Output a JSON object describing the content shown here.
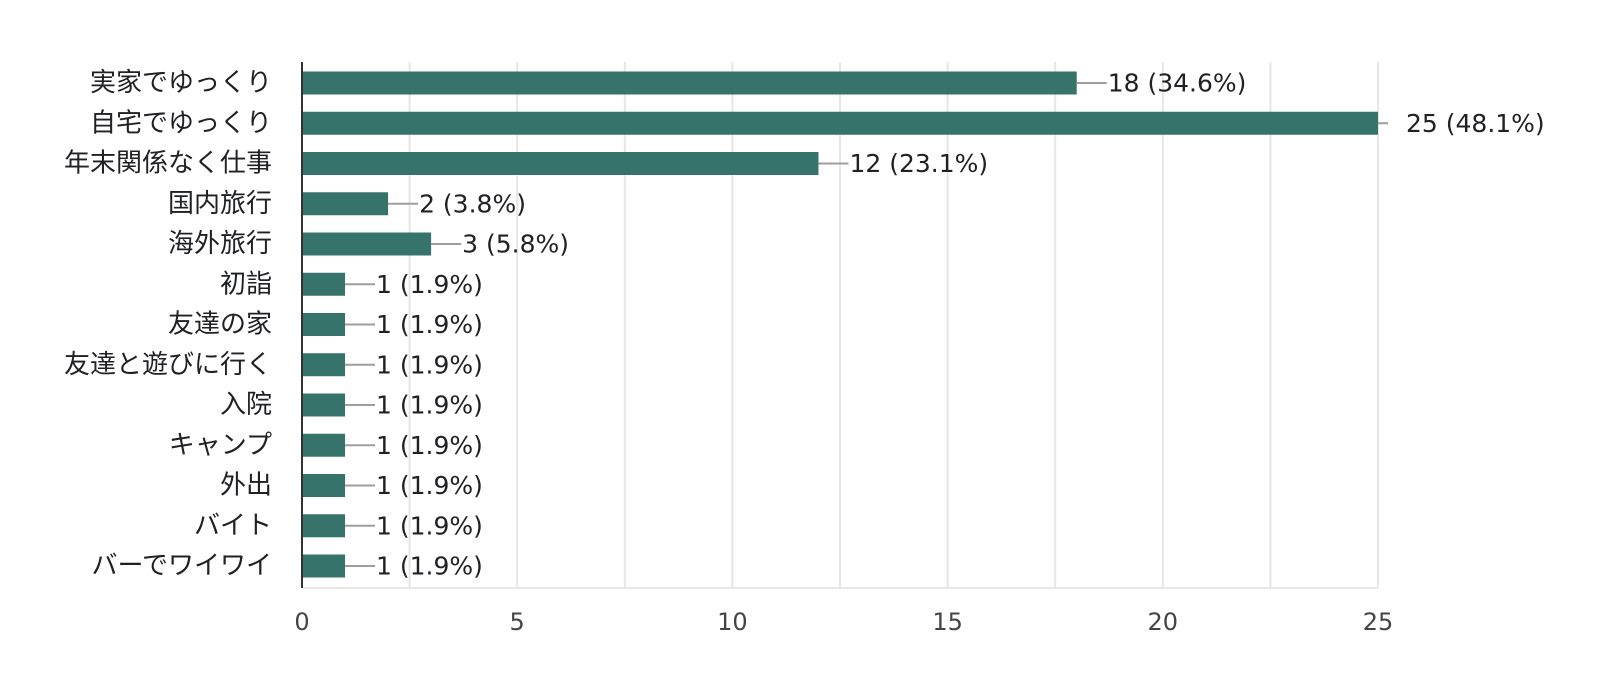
{
  "chart_data": {
    "type": "bar",
    "orientation": "horizontal",
    "categories": [
      "実家でゆっくり",
      "自宅でゆっくり",
      "年末関係なく仕事",
      "国内旅行",
      "海外旅行",
      "初詣",
      "友達の家",
      "友達と遊びに行く",
      "入院",
      "キャンプ",
      "外出",
      "バイト",
      "バーでワイワイ"
    ],
    "values": [
      18,
      25,
      12,
      2,
      3,
      1,
      1,
      1,
      1,
      1,
      1,
      1,
      1
    ],
    "data_labels": [
      "18 (34.6%)",
      "25 (48.1%)",
      "12 (23.1%)",
      "2 (3.8%)",
      "3 (5.8%)",
      "1 (1.9%)",
      "1 (1.9%)",
      "1 (1.9%)",
      "1 (1.9%)",
      "1 (1.9%)",
      "1 (1.9%)",
      "1 (1.9%)",
      "1 (1.9%)"
    ],
    "xlim": [
      0,
      25
    ],
    "x_ticks": [
      0,
      5,
      10,
      15,
      20,
      25
    ],
    "x_tick_labels": [
      "0",
      "5",
      "10",
      "15",
      "20",
      "25"
    ],
    "grid": true,
    "colors": {
      "bar": "#36736a",
      "grid": "#e6e6e6",
      "axis": "#333333",
      "leader": "#9e9e9e"
    }
  }
}
